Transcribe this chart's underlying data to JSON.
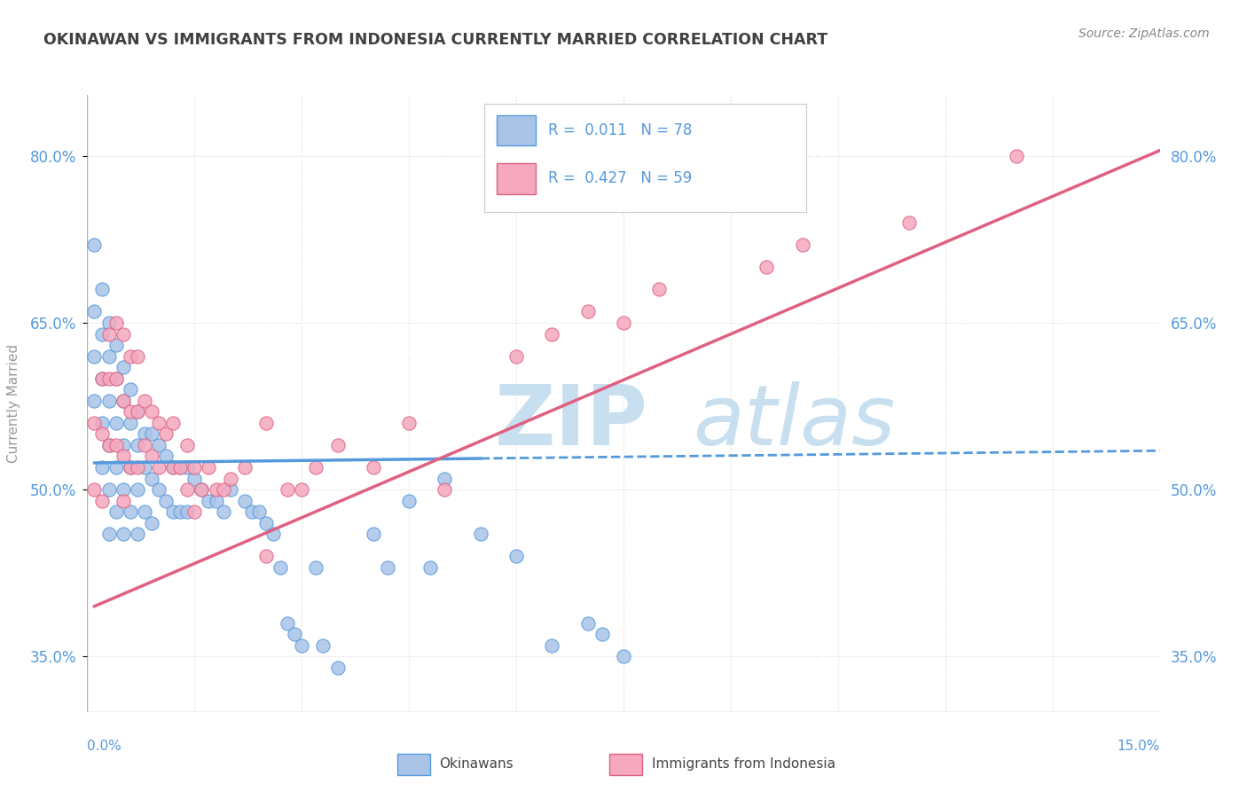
{
  "title": "OKINAWAN VS IMMIGRANTS FROM INDONESIA CURRENTLY MARRIED CORRELATION CHART",
  "source": "Source: ZipAtlas.com",
  "ylabel": "Currently Married",
  "xmin": 0.0,
  "xmax": 0.15,
  "ymin": 0.3,
  "ymax": 0.855,
  "yticks": [
    0.35,
    0.5,
    0.65,
    0.8
  ],
  "ytick_labels": [
    "35.0%",
    "50.0%",
    "65.0%",
    "80.0%"
  ],
  "legend_r1": "R =  0.011",
  "legend_n1": "N = 78",
  "legend_r2": "R =  0.427",
  "legend_n2": "N = 59",
  "series1_color": "#aac4e8",
  "series2_color": "#f5a8be",
  "trendline1_color": "#5599dd",
  "trendline2_color": "#e06080",
  "watermark_zip_color": "#c8dff0",
  "watermark_atlas_color": "#c8dff0",
  "background_color": "#ffffff",
  "grid_color": "#d8d8d8",
  "tick_color": "#5599dd",
  "title_color": "#404040",
  "source_color": "#888888",
  "trendline1_x0": 0.001,
  "trendline1_x1": 0.15,
  "trendline1_y0": 0.524,
  "trendline1_y1": 0.535,
  "trendline2_x0": 0.001,
  "trendline2_x1": 0.15,
  "trendline2_y0": 0.395,
  "trendline2_y1": 0.805,
  "okinawan_x": [
    0.001,
    0.001,
    0.001,
    0.001,
    0.002,
    0.002,
    0.002,
    0.002,
    0.002,
    0.003,
    0.003,
    0.003,
    0.003,
    0.003,
    0.003,
    0.004,
    0.004,
    0.004,
    0.004,
    0.004,
    0.005,
    0.005,
    0.005,
    0.005,
    0.005,
    0.006,
    0.006,
    0.006,
    0.006,
    0.007,
    0.007,
    0.007,
    0.007,
    0.008,
    0.008,
    0.008,
    0.009,
    0.009,
    0.009,
    0.01,
    0.01,
    0.011,
    0.011,
    0.012,
    0.012,
    0.013,
    0.013,
    0.014,
    0.014,
    0.015,
    0.016,
    0.017,
    0.018,
    0.019,
    0.02,
    0.022,
    0.023,
    0.024,
    0.025,
    0.026,
    0.027,
    0.028,
    0.029,
    0.03,
    0.032,
    0.033,
    0.035,
    0.04,
    0.042,
    0.045,
    0.048,
    0.05,
    0.055,
    0.06,
    0.065,
    0.07,
    0.072,
    0.075
  ],
  "okinawan_y": [
    0.72,
    0.66,
    0.62,
    0.58,
    0.68,
    0.64,
    0.6,
    0.56,
    0.52,
    0.65,
    0.62,
    0.58,
    0.54,
    0.5,
    0.46,
    0.63,
    0.6,
    0.56,
    0.52,
    0.48,
    0.61,
    0.58,
    0.54,
    0.5,
    0.46,
    0.59,
    0.56,
    0.52,
    0.48,
    0.57,
    0.54,
    0.5,
    0.46,
    0.55,
    0.52,
    0.48,
    0.55,
    0.51,
    0.47,
    0.54,
    0.5,
    0.53,
    0.49,
    0.52,
    0.48,
    0.52,
    0.48,
    0.52,
    0.48,
    0.51,
    0.5,
    0.49,
    0.49,
    0.48,
    0.5,
    0.49,
    0.48,
    0.48,
    0.47,
    0.46,
    0.43,
    0.38,
    0.37,
    0.36,
    0.43,
    0.36,
    0.34,
    0.46,
    0.43,
    0.49,
    0.43,
    0.51,
    0.46,
    0.44,
    0.36,
    0.38,
    0.37,
    0.35
  ],
  "indonesia_x": [
    0.001,
    0.001,
    0.002,
    0.002,
    0.002,
    0.003,
    0.003,
    0.003,
    0.004,
    0.004,
    0.004,
    0.005,
    0.005,
    0.005,
    0.005,
    0.006,
    0.006,
    0.006,
    0.007,
    0.007,
    0.007,
    0.008,
    0.008,
    0.009,
    0.009,
    0.01,
    0.01,
    0.011,
    0.012,
    0.012,
    0.013,
    0.014,
    0.014,
    0.015,
    0.015,
    0.016,
    0.017,
    0.018,
    0.019,
    0.02,
    0.022,
    0.025,
    0.025,
    0.028,
    0.03,
    0.032,
    0.035,
    0.04,
    0.045,
    0.05,
    0.06,
    0.065,
    0.07,
    0.075,
    0.08,
    0.095,
    0.1,
    0.115,
    0.13
  ],
  "indonesia_y": [
    0.56,
    0.5,
    0.6,
    0.55,
    0.49,
    0.64,
    0.6,
    0.54,
    0.65,
    0.6,
    0.54,
    0.64,
    0.58,
    0.53,
    0.49,
    0.62,
    0.57,
    0.52,
    0.62,
    0.57,
    0.52,
    0.58,
    0.54,
    0.57,
    0.53,
    0.56,
    0.52,
    0.55,
    0.56,
    0.52,
    0.52,
    0.54,
    0.5,
    0.52,
    0.48,
    0.5,
    0.52,
    0.5,
    0.5,
    0.51,
    0.52,
    0.44,
    0.56,
    0.5,
    0.5,
    0.52,
    0.54,
    0.52,
    0.56,
    0.5,
    0.62,
    0.64,
    0.66,
    0.65,
    0.68,
    0.7,
    0.72,
    0.74,
    0.8
  ]
}
